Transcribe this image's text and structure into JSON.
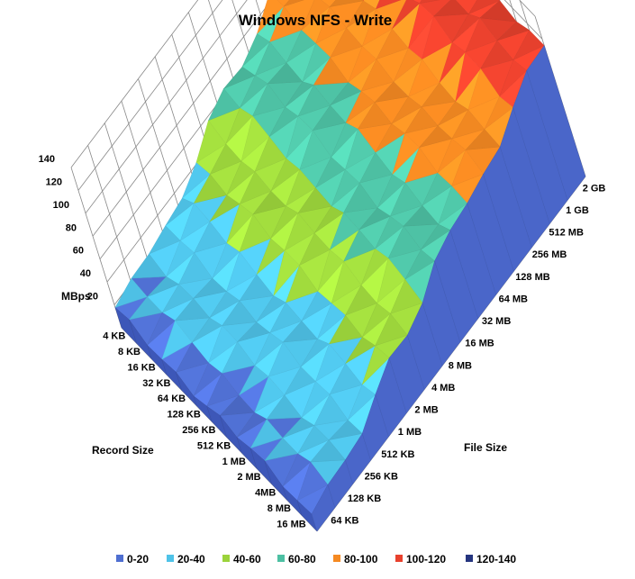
{
  "chart_data": {
    "type": "surface",
    "title": "Windows NFS - Write",
    "z_axis": {
      "label": "MBps",
      "ticks": [
        20,
        40,
        60,
        80,
        100,
        120,
        140
      ],
      "range": [
        0,
        140
      ]
    },
    "x_axis": {
      "label": "Record Size",
      "ticks": [
        "4 KB",
        "8 KB",
        "16 KB",
        "32 KB",
        "64 KB",
        "128 KB",
        "256 KB",
        "512 KB",
        "1 MB",
        "2 MB",
        "4MB",
        "8 MB",
        "16 MB"
      ]
    },
    "y_axis": {
      "label": "File Size",
      "ticks": [
        "64 KB",
        "128 KB",
        "256 KB",
        "512 KB",
        "1 MB",
        "2 MB",
        "4 MB",
        "8 MB",
        "16 MB",
        "32 MB",
        "64 MB",
        "128 MB",
        "256 MB",
        "512 MB",
        "1 GB",
        "2 GB"
      ]
    },
    "legend": [
      {
        "label": "0-20",
        "color": "#4f6fd1"
      },
      {
        "label": "20-40",
        "color": "#4fc3e8"
      },
      {
        "label": "40-60",
        "color": "#9bd33b"
      },
      {
        "label": "60-80",
        "color": "#4dc0a3"
      },
      {
        "label": "80-100",
        "color": "#f58a22"
      },
      {
        "label": "100-120",
        "color": "#e8412d"
      },
      {
        "label": "120-140",
        "color": "#25357f"
      }
    ],
    "legend_position": "bottom",
    "grid": true,
    "file_size_profile": [
      15,
      20,
      24,
      28,
      34,
      44,
      53,
      62,
      70,
      76,
      83,
      88,
      93,
      107,
      112,
      114
    ],
    "record_size_modifier": [
      0.98,
      1.0,
      1.01,
      0.99,
      1.02,
      1.0,
      0.99,
      1.01,
      1.0,
      0.98,
      1.0,
      0.99,
      0.97
    ]
  }
}
